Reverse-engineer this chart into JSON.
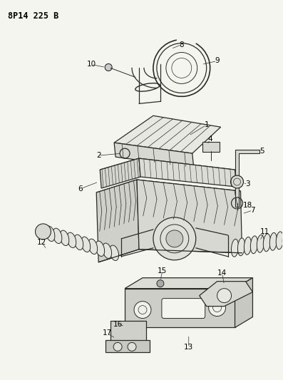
{
  "title": "8P14 225 B",
  "bg_color": "#f5f5f0",
  "line_color": "#2a2a2a",
  "figsize": [
    3.97,
    5.33
  ],
  "dpi": 100
}
